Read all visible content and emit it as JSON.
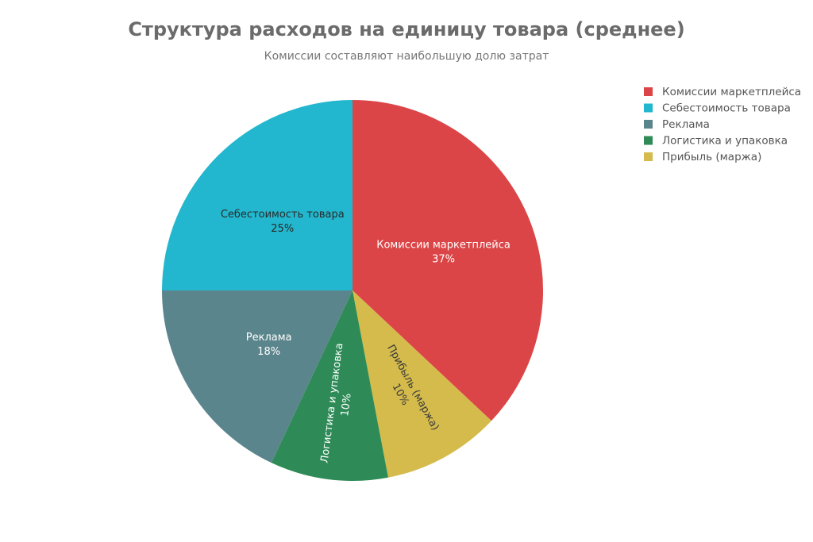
{
  "chart_data": {
    "type": "pie",
    "title": "Структура расходов на единицу товара (среднее)",
    "subtitle": "Комиссии составляют наибольшую долю затрат",
    "slices": [
      {
        "label": "Комиссии маркетплейса",
        "value": 37,
        "value_label": "37%",
        "color": "#db4547",
        "text_color": "#ffffff"
      },
      {
        "label": "Прибыль (маржа)",
        "value": 10,
        "value_label": "10%",
        "color": "#d4bb4c",
        "text_color": "#3a3a3a"
      },
      {
        "label": "Логистика и упаковка",
        "value": 10,
        "value_label": "10%",
        "color": "#2e8b57",
        "text_color": "#ffffff"
      },
      {
        "label": "Реклама",
        "value": 18,
        "value_label": "18%",
        "color": "#5b858c",
        "text_color": "#ffffff"
      },
      {
        "label": "Себестоимость товара",
        "value": 25,
        "value_label": "25%",
        "color": "#22b7ce",
        "text_color": "#2a2a2a"
      }
    ],
    "legend": {
      "placement": "top-right",
      "items": [
        {
          "label": "Комиссии маркетплейса",
          "color": "#db4547"
        },
        {
          "label": "Себестоимость товара",
          "color": "#22b7ce"
        },
        {
          "label": "Реклама",
          "color": "#5b858c"
        },
        {
          "label": "Логистика и упаковка",
          "color": "#2e8b57"
        },
        {
          "label": "Прибыль (маржа)",
          "color": "#d4bb4c"
        }
      ]
    }
  }
}
